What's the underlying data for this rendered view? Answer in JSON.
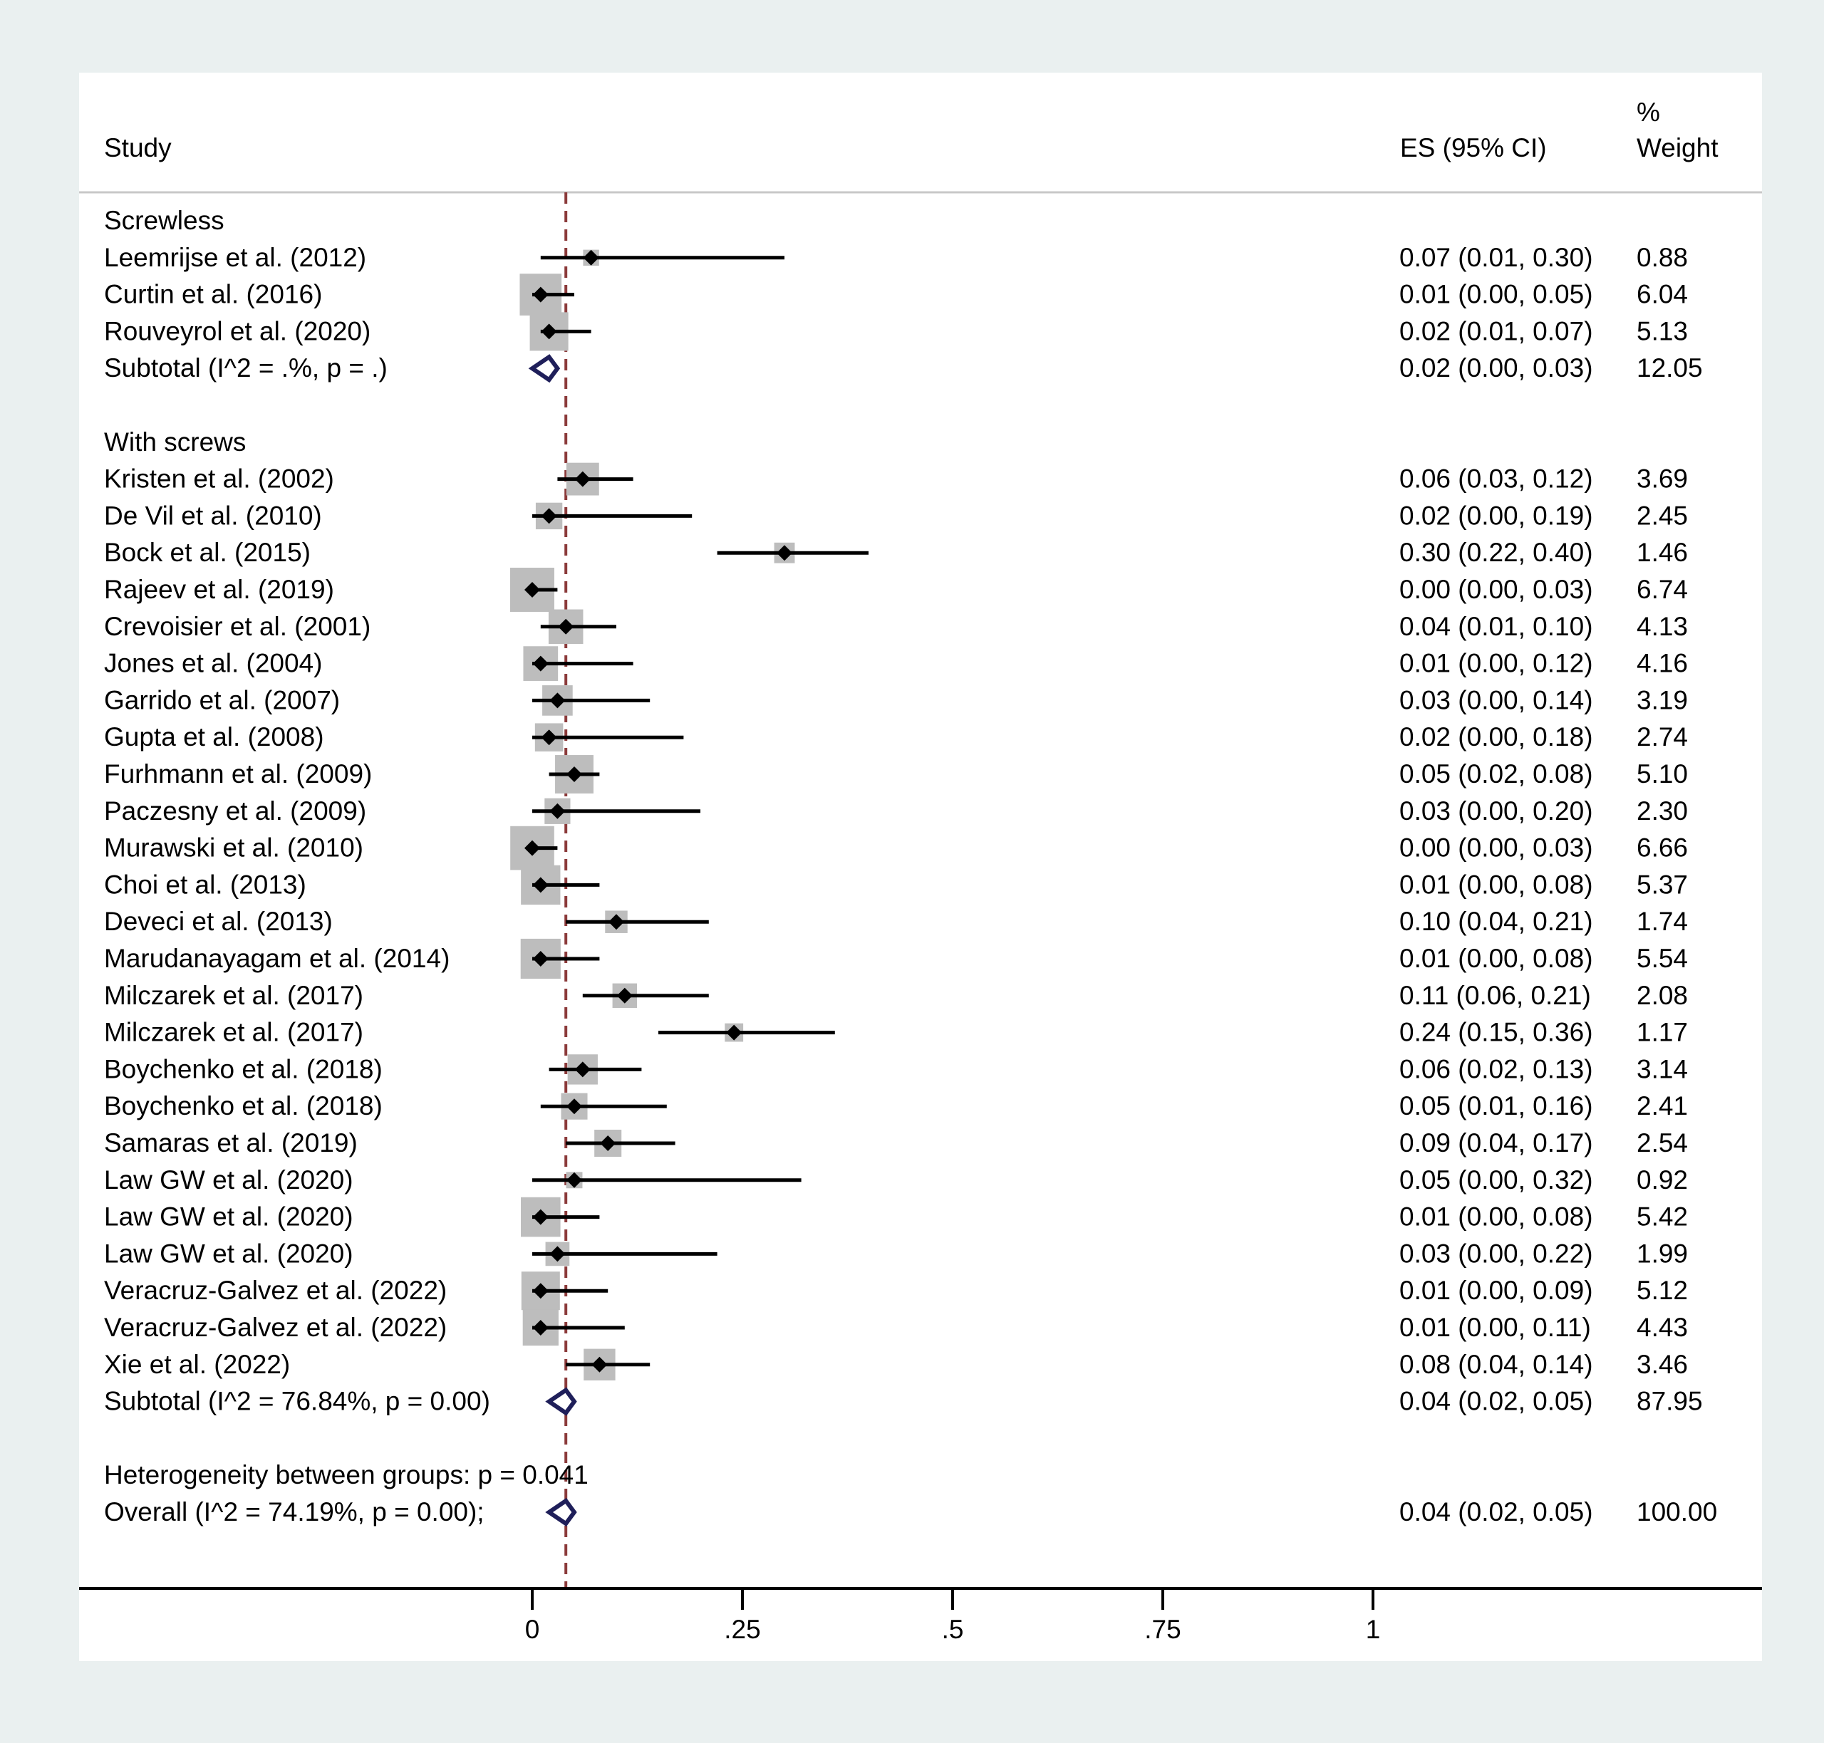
{
  "header": {
    "study": "Study",
    "es": "ES (95% CI)",
    "weight_line1": "%",
    "weight_line2": "Weight"
  },
  "colors": {
    "background": "#eaf0f0",
    "panel": "#ffffff",
    "weight_box": "#bdbdbd",
    "point": "#000000",
    "diamond": "#1f1f5a",
    "reference_line": "#8b3a3a",
    "header_rule": "#c8c8c8"
  },
  "chart_data": {
    "type": "forest",
    "x_ticks": [
      "0",
      ".25",
      ".5",
      ".75",
      "1"
    ],
    "x_tick_values": [
      0,
      0.25,
      0.5,
      0.75,
      1
    ],
    "reference_line_value": 0.04,
    "groups": [
      {
        "label": "Screwless",
        "studies": [
          {
            "label": "Leemrijse et al. (2012)",
            "es": 0.07,
            "lo": 0.01,
            "hi": 0.3,
            "es_text": "0.07 (0.01, 0.30)",
            "weight": "0.88"
          },
          {
            "label": "Curtin et al. (2016)",
            "es": 0.01,
            "lo": 0.0,
            "hi": 0.05,
            "es_text": "0.01 (0.00, 0.05)",
            "weight": "6.04"
          },
          {
            "label": "Rouveyrol et al. (2020)",
            "es": 0.02,
            "lo": 0.01,
            "hi": 0.07,
            "es_text": "0.02 (0.01, 0.07)",
            "weight": "5.13"
          }
        ],
        "subtotal": {
          "label": "Subtotal  (I^2 = .%, p = .)",
          "es": 0.02,
          "lo": 0.0,
          "hi": 0.03,
          "es_text": "0.02 (0.00, 0.03)",
          "weight": "12.05"
        }
      },
      {
        "label": "With screws",
        "studies": [
          {
            "label": "Kristen et al. (2002)",
            "es": 0.06,
            "lo": 0.03,
            "hi": 0.12,
            "es_text": "0.06 (0.03, 0.12)",
            "weight": "3.69"
          },
          {
            "label": "De Vil et al. (2010)",
            "es": 0.02,
            "lo": 0.0,
            "hi": 0.19,
            "es_text": "0.02 (0.00, 0.19)",
            "weight": "2.45"
          },
          {
            "label": "Bock et al. (2015)",
            "es": 0.3,
            "lo": 0.22,
            "hi": 0.4,
            "es_text": "0.30 (0.22, 0.40)",
            "weight": "1.46"
          },
          {
            "label": "Rajeev et al. (2019)",
            "es": 0.0,
            "lo": 0.0,
            "hi": 0.03,
            "es_text": "0.00 (0.00, 0.03)",
            "weight": "6.74"
          },
          {
            "label": "Crevoisier et al. (2001)",
            "es": 0.04,
            "lo": 0.01,
            "hi": 0.1,
            "es_text": "0.04 (0.01, 0.10)",
            "weight": "4.13"
          },
          {
            "label": "Jones et al. (2004)",
            "es": 0.01,
            "lo": 0.0,
            "hi": 0.12,
            "es_text": "0.01 (0.00, 0.12)",
            "weight": "4.16"
          },
          {
            "label": "Garrido et al. (2007)",
            "es": 0.03,
            "lo": 0.0,
            "hi": 0.14,
            "es_text": "0.03 (0.00, 0.14)",
            "weight": "3.19"
          },
          {
            "label": "Gupta et al.  (2008)",
            "es": 0.02,
            "lo": 0.0,
            "hi": 0.18,
            "es_text": "0.02 (0.00, 0.18)",
            "weight": "2.74"
          },
          {
            "label": "Furhmann et al. (2009)",
            "es": 0.05,
            "lo": 0.02,
            "hi": 0.08,
            "es_text": "0.05 (0.02, 0.08)",
            "weight": "5.10"
          },
          {
            "label": "Paczesny et al. (2009)",
            "es": 0.03,
            "lo": 0.0,
            "hi": 0.2,
            "es_text": "0.03 (0.00, 0.20)",
            "weight": "2.30"
          },
          {
            "label": "Murawski et al. (2010)",
            "es": 0.0,
            "lo": 0.0,
            "hi": 0.03,
            "es_text": "0.00 (0.00, 0.03)",
            "weight": "6.66"
          },
          {
            "label": "Choi et al. (2013)",
            "es": 0.01,
            "lo": 0.0,
            "hi": 0.08,
            "es_text": "0.01 (0.00, 0.08)",
            "weight": "5.37"
          },
          {
            "label": "Deveci et al. (2013)",
            "es": 0.1,
            "lo": 0.04,
            "hi": 0.21,
            "es_text": "0.10 (0.04, 0.21)",
            "weight": "1.74"
          },
          {
            "label": "Marudanayagam et al. (2014)",
            "es": 0.01,
            "lo": 0.0,
            "hi": 0.08,
            "es_text": "0.01 (0.00, 0.08)",
            "weight": "5.54"
          },
          {
            "label": "Milczarek et al. (2017)",
            "es": 0.11,
            "lo": 0.06,
            "hi": 0.21,
            "es_text": "0.11 (0.06, 0.21)",
            "weight": "2.08"
          },
          {
            "label": "Milczarek et al. (2017)",
            "es": 0.24,
            "lo": 0.15,
            "hi": 0.36,
            "es_text": "0.24 (0.15, 0.36)",
            "weight": "1.17"
          },
          {
            "label": "Boychenko et al. (2018)",
            "es": 0.06,
            "lo": 0.02,
            "hi": 0.13,
            "es_text": "0.06 (0.02, 0.13)",
            "weight": "3.14"
          },
          {
            "label": "Boychenko et al. (2018)",
            "es": 0.05,
            "lo": 0.01,
            "hi": 0.16,
            "es_text": "0.05 (0.01, 0.16)",
            "weight": "2.41"
          },
          {
            "label": "Samaras et al. (2019)",
            "es": 0.09,
            "lo": 0.04,
            "hi": 0.17,
            "es_text": "0.09 (0.04, 0.17)",
            "weight": "2.54"
          },
          {
            "label": "Law GW et al. (2020)",
            "es": 0.05,
            "lo": 0.0,
            "hi": 0.32,
            "es_text": "0.05 (0.00, 0.32)",
            "weight": "0.92"
          },
          {
            "label": "Law GW et al. (2020)",
            "es": 0.01,
            "lo": 0.0,
            "hi": 0.08,
            "es_text": "0.01 (0.00, 0.08)",
            "weight": "5.42"
          },
          {
            "label": "Law GW et al. (2020)",
            "es": 0.03,
            "lo": 0.0,
            "hi": 0.22,
            "es_text": "0.03 (0.00, 0.22)",
            "weight": "1.99"
          },
          {
            "label": "Veracruz-Galvez et al. (2022)",
            "es": 0.01,
            "lo": 0.0,
            "hi": 0.09,
            "es_text": "0.01 (0.00, 0.09)",
            "weight": "5.12"
          },
          {
            "label": "Veracruz-Galvez et al. (2022)",
            "es": 0.01,
            "lo": 0.0,
            "hi": 0.11,
            "es_text": "0.01 (0.00, 0.11)",
            "weight": "4.43"
          },
          {
            "label": "Xie et al. (2022)",
            "es": 0.08,
            "lo": 0.04,
            "hi": 0.14,
            "es_text": "0.08 (0.04, 0.14)",
            "weight": "3.46"
          }
        ],
        "subtotal": {
          "label": "Subtotal  (I^2 = 76.84%, p = 0.00)",
          "es": 0.04,
          "lo": 0.02,
          "hi": 0.05,
          "es_text": "0.04 (0.02, 0.05)",
          "weight": "87.95"
        }
      }
    ],
    "heterogeneity_label": "Heterogeneity between groups: p = 0.041",
    "overall": {
      "label": "Overall  (I^2 = 74.19%, p = 0.00);",
      "es": 0.04,
      "lo": 0.02,
      "hi": 0.05,
      "es_text": "0.04 (0.02, 0.05)",
      "weight": "100.00"
    }
  }
}
